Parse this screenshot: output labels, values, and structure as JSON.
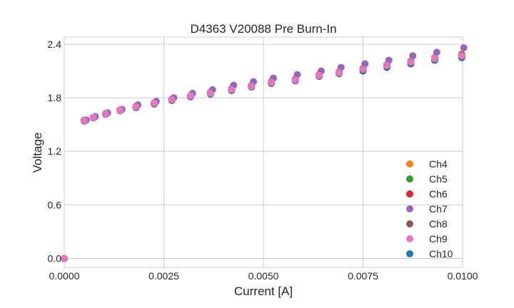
{
  "chart_data": {
    "type": "scatter",
    "title": "D4363 V20088 Pre Burn-In",
    "xlabel": "Current [A]",
    "ylabel": "Voltage",
    "xlim": [
      0,
      0.01
    ],
    "ylim": [
      -0.1,
      2.48
    ],
    "xticks": [
      "0.0000",
      "0.0025",
      "0.0050",
      "0.0075",
      "0.0100"
    ],
    "xtick_values": [
      0,
      0.0025,
      0.005,
      0.0075,
      0.01
    ],
    "yticks": [
      "0.0",
      "0.6",
      "1.2",
      "1.8",
      "2.4"
    ],
    "ytick_values": [
      0,
      0.6,
      1.2,
      1.8,
      2.4
    ],
    "grid": true,
    "legend_position": "bottom-right",
    "x": [
      0,
      0.0005,
      0.00073,
      0.00104,
      0.0014,
      0.0018,
      0.00226,
      0.0027,
      0.00317,
      0.00367,
      0.0042,
      0.0047,
      0.0052,
      0.0058,
      0.0064,
      0.0069,
      0.0075,
      0.0081,
      0.0087,
      0.0093,
      0.00998
    ],
    "series": [
      {
        "name": "Ch4",
        "color": "#ff7f0e",
        "values": [
          0,
          1.55,
          1.58,
          1.625,
          1.665,
          1.705,
          1.745,
          1.785,
          1.825,
          1.86,
          1.9,
          1.94,
          1.98,
          2.01,
          2.06,
          2.09,
          2.13,
          2.17,
          2.21,
          2.25,
          2.29
        ]
      },
      {
        "name": "Ch5",
        "color": "#2ca02c",
        "values": [
          0,
          1.547,
          1.579,
          1.62,
          1.66,
          1.7,
          1.74,
          1.78,
          1.82,
          1.855,
          1.895,
          1.935,
          1.975,
          2.005,
          2.05,
          2.085,
          2.125,
          2.165,
          2.205,
          2.245,
          2.28
        ]
      },
      {
        "name": "Ch6",
        "color": "#d62728",
        "values": [
          0,
          1.545,
          1.577,
          1.617,
          1.657,
          1.697,
          1.737,
          1.777,
          1.817,
          1.848,
          1.887,
          1.927,
          1.967,
          1.997,
          2.047,
          2.077,
          2.117,
          2.157,
          2.197,
          2.237,
          2.267
        ]
      },
      {
        "name": "Ch7",
        "color": "#9467bd",
        "x_offset": 5e-05,
        "values": [
          0,
          1.55,
          1.59,
          1.63,
          1.67,
          1.72,
          1.76,
          1.8,
          1.85,
          1.89,
          1.94,
          1.98,
          2.02,
          2.06,
          2.1,
          2.14,
          2.18,
          2.22,
          2.27,
          2.31,
          2.36
        ]
      },
      {
        "name": "Ch8",
        "color": "#8c564b",
        "values": [
          0,
          1.548,
          1.58,
          1.621,
          1.661,
          1.701,
          1.742,
          1.782,
          1.822,
          1.853,
          1.893,
          1.933,
          1.973,
          2.003,
          2.053,
          2.083,
          2.123,
          2.163,
          2.203,
          2.243,
          2.275
        ]
      },
      {
        "name": "Ch9",
        "color": "#e377c2",
        "values": [
          0,
          1.547,
          1.579,
          1.62,
          1.66,
          1.7,
          1.74,
          1.78,
          1.82,
          1.85,
          1.89,
          1.93,
          1.97,
          2.0,
          2.05,
          2.08,
          2.12,
          2.16,
          2.2,
          2.24,
          2.27
        ]
      },
      {
        "name": "Ch10",
        "color": "#1f77b4",
        "values": [
          0,
          1.54,
          1.575,
          1.615,
          1.655,
          1.69,
          1.73,
          1.77,
          1.81,
          1.84,
          1.88,
          1.92,
          1.96,
          1.99,
          2.04,
          2.07,
          2.1,
          2.14,
          2.18,
          2.22,
          2.25
        ]
      }
    ],
    "draw_order": [
      "Ch10",
      "Ch4",
      "Ch5",
      "Ch8",
      "Ch6",
      "Ch7",
      "Ch9"
    ]
  }
}
